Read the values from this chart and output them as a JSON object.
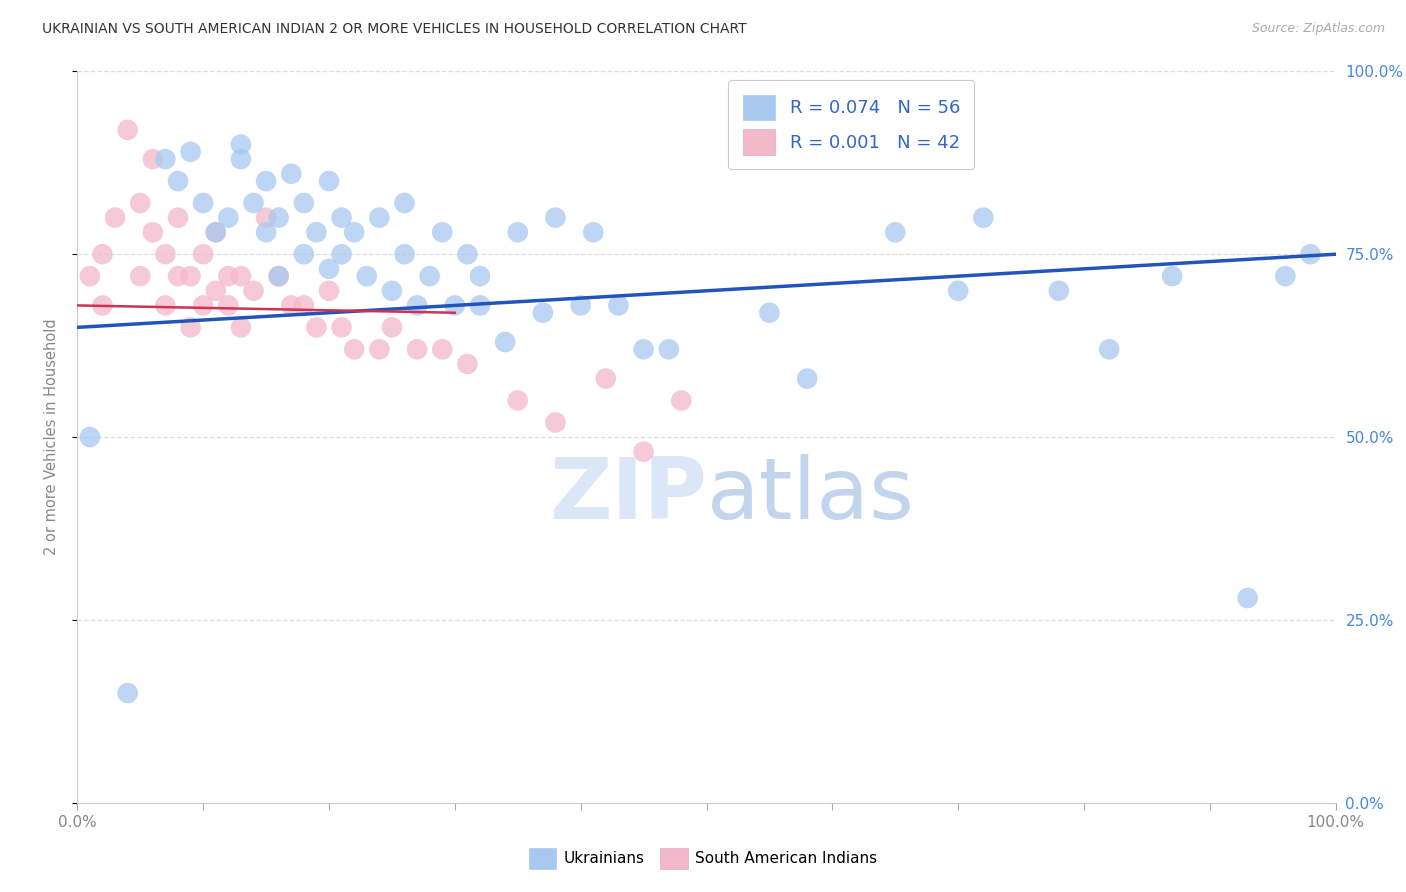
{
  "title": "UKRAINIAN VS SOUTH AMERICAN INDIAN 2 OR MORE VEHICLES IN HOUSEHOLD CORRELATION CHART",
  "source": "Source: ZipAtlas.com",
  "ylabel": "2 or more Vehicles in Household",
  "legend_label1": "Ukrainians",
  "legend_label2": "South American Indians",
  "legend_r1": "R = 0.074",
  "legend_n1": "N = 56",
  "legend_r2": "R = 0.001",
  "legend_n2": "N = 42",
  "blue_color": "#a8c8f0",
  "pink_color": "#f4b8cb",
  "trend_blue": "#2255bb",
  "trend_pink": "#cc3355",
  "watermark_color": "#ddeeff",
  "blue_x": [
    1,
    4,
    7,
    8,
    9,
    10,
    11,
    12,
    13,
    13,
    14,
    15,
    15,
    16,
    16,
    17,
    18,
    18,
    19,
    20,
    20,
    21,
    21,
    22,
    23,
    24,
    25,
    26,
    26,
    27,
    28,
    29,
    30,
    31,
    32,
    32,
    34,
    35,
    37,
    38,
    40,
    41,
    43,
    45,
    47,
    55,
    58,
    65,
    70,
    72,
    78,
    82,
    87,
    93,
    96,
    98
  ],
  "blue_y": [
    50,
    15,
    88,
    85,
    89,
    82,
    78,
    80,
    88,
    90,
    82,
    78,
    85,
    72,
    80,
    86,
    75,
    82,
    78,
    85,
    73,
    80,
    75,
    78,
    72,
    80,
    70,
    75,
    82,
    68,
    72,
    78,
    68,
    75,
    68,
    72,
    63,
    78,
    67,
    80,
    68,
    78,
    68,
    62,
    62,
    67,
    58,
    78,
    70,
    80,
    70,
    62,
    72,
    28,
    72,
    75
  ],
  "pink_x": [
    1,
    2,
    2,
    3,
    4,
    5,
    5,
    6,
    6,
    7,
    7,
    8,
    8,
    9,
    9,
    10,
    10,
    11,
    11,
    12,
    12,
    13,
    13,
    14,
    15,
    16,
    17,
    18,
    19,
    20,
    21,
    22,
    24,
    25,
    27,
    29,
    31,
    35,
    38,
    42,
    45,
    48
  ],
  "pink_y": [
    72,
    68,
    75,
    80,
    92,
    72,
    82,
    78,
    88,
    75,
    68,
    80,
    72,
    72,
    65,
    75,
    68,
    78,
    70,
    72,
    68,
    72,
    65,
    70,
    80,
    72,
    68,
    68,
    65,
    70,
    65,
    62,
    62,
    65,
    62,
    62,
    60,
    55,
    52,
    58,
    48,
    55
  ],
  "xlim": [
    0,
    100
  ],
  "ylim": [
    0,
    100
  ],
  "ytick_values": [
    0,
    25,
    50,
    75,
    100
  ],
  "ytick_labels": [
    "0.0%",
    "25.0%",
    "50.0%",
    "75.0%",
    "100.0%"
  ],
  "blue_trend_x": [
    0,
    100
  ],
  "blue_trend_y": [
    65,
    75
  ],
  "pink_trend_x": [
    0,
    30
  ],
  "pink_trend_y": [
    68,
    67
  ],
  "grid_color": "#dddddd",
  "spine_color": "#cccccc",
  "tick_color": "#aaaaaa",
  "label_color": "#888888",
  "right_tick_color": "#4488dd",
  "title_color": "#333333",
  "source_color": "#aaaaaa"
}
